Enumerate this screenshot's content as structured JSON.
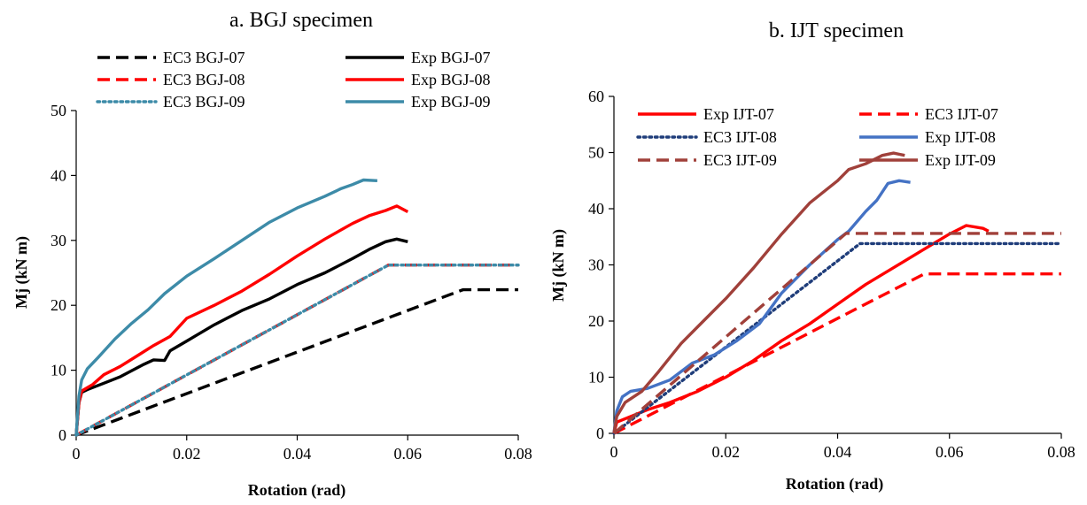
{
  "chart_data": [
    {
      "type": "line",
      "title": "a. BGJ specimen",
      "xlabel": "Rotation (rad)",
      "ylabel": "Mj (kN m)",
      "xlim": [
        0,
        0.08
      ],
      "ylim": [
        0,
        50
      ],
      "xticks": [
        0,
        0.02,
        0.04,
        0.06,
        0.08
      ],
      "xtick_labels": [
        "0",
        "0.02",
        "0.04",
        "0.06",
        "0.08"
      ],
      "yticks": [
        0,
        10,
        20,
        30,
        40,
        50
      ],
      "ytick_labels": [
        "0",
        "10",
        "20",
        "30",
        "40",
        "50"
      ],
      "grid": false,
      "legend_position": "top",
      "series": [
        {
          "name": "EC3 BGJ-07",
          "color": "#000000",
          "dash": "dashed",
          "points": [
            [
              0,
              0
            ],
            [
              0.07,
              22.4
            ],
            [
              0.08,
              22.4
            ]
          ]
        },
        {
          "name": "Exp BGJ-07",
          "color": "#000000",
          "dash": "solid",
          "points": [
            [
              0,
              0
            ],
            [
              0.0005,
              5
            ],
            [
              0.001,
              6.6
            ],
            [
              0.002,
              7.0
            ],
            [
              0.005,
              8.0
            ],
            [
              0.008,
              9.0
            ],
            [
              0.012,
              10.8
            ],
            [
              0.014,
              11.6
            ],
            [
              0.016,
              11.5
            ],
            [
              0.017,
              13.0
            ],
            [
              0.02,
              14.5
            ],
            [
              0.025,
              17.0
            ],
            [
              0.03,
              19.2
            ],
            [
              0.035,
              21.0
            ],
            [
              0.04,
              23.2
            ],
            [
              0.045,
              25.0
            ],
            [
              0.05,
              27.2
            ],
            [
              0.053,
              28.6
            ],
            [
              0.056,
              29.8
            ],
            [
              0.058,
              30.2
            ],
            [
              0.06,
              29.8
            ]
          ]
        },
        {
          "name": "EC3 BGJ-08",
          "color": "#ff0000",
          "dash": "dashed",
          "points": [
            [
              0,
              0
            ],
            [
              0.0565,
              26.2
            ],
            [
              0.08,
              26.2
            ]
          ]
        },
        {
          "name": "Exp BGJ-08",
          "color": "#ff0000",
          "dash": "solid",
          "points": [
            [
              0,
              0
            ],
            [
              0.0005,
              5
            ],
            [
              0.001,
              6.8
            ],
            [
              0.003,
              7.8
            ],
            [
              0.005,
              9.3
            ],
            [
              0.008,
              10.6
            ],
            [
              0.011,
              12.2
            ],
            [
              0.014,
              13.8
            ],
            [
              0.017,
              15.2
            ],
            [
              0.02,
              18.0
            ],
            [
              0.025,
              20.0
            ],
            [
              0.03,
              22.2
            ],
            [
              0.035,
              24.8
            ],
            [
              0.04,
              27.6
            ],
            [
              0.045,
              30.2
            ],
            [
              0.05,
              32.6
            ],
            [
              0.053,
              33.8
            ],
            [
              0.056,
              34.6
            ],
            [
              0.058,
              35.3
            ],
            [
              0.06,
              34.4
            ]
          ]
        },
        {
          "name": "EC3 BGJ-09",
          "color": "#3d8ba8",
          "dash": "dotted",
          "points": [
            [
              0,
              0
            ],
            [
              0.0565,
              26.2
            ],
            [
              0.08,
              26.2
            ]
          ]
        },
        {
          "name": "Exp BGJ-09",
          "color": "#3d8ba8",
          "dash": "solid",
          "points": [
            [
              0,
              0
            ],
            [
              0.0005,
              6
            ],
            [
              0.001,
              8.5
            ],
            [
              0.002,
              10.2
            ],
            [
              0.004,
              12.0
            ],
            [
              0.007,
              14.8
            ],
            [
              0.01,
              17.2
            ],
            [
              0.013,
              19.3
            ],
            [
              0.016,
              21.8
            ],
            [
              0.02,
              24.5
            ],
            [
              0.025,
              27.2
            ],
            [
              0.03,
              30.0
            ],
            [
              0.035,
              32.8
            ],
            [
              0.04,
              35.0
            ],
            [
              0.045,
              36.8
            ],
            [
              0.048,
              38.0
            ],
            [
              0.05,
              38.6
            ],
            [
              0.052,
              39.3
            ],
            [
              0.0545,
              39.2
            ]
          ]
        }
      ]
    },
    {
      "type": "line",
      "title": "b. IJT specimen",
      "xlabel": "Rotation (rad)",
      "ylabel": "Mj (kN m)",
      "xlim": [
        0,
        0.08
      ],
      "ylim": [
        0,
        60
      ],
      "xticks": [
        0,
        0.02,
        0.04,
        0.06,
        0.08
      ],
      "xtick_labels": [
        "0",
        "0.02",
        "0.04",
        "0.06",
        "0.08"
      ],
      "yticks": [
        0,
        10,
        20,
        30,
        40,
        50,
        60
      ],
      "ytick_labels": [
        "0",
        "10",
        "20",
        "30",
        "40",
        "50",
        "60"
      ],
      "grid": false,
      "legend_position": "top",
      "series": [
        {
          "name": "Exp IJT-07",
          "color": "#ff0000",
          "dash": "solid",
          "points": [
            [
              0,
              0
            ],
            [
              0.0005,
              2.0
            ],
            [
              0.003,
              3.0
            ],
            [
              0.006,
              4.2
            ],
            [
              0.01,
              5.5
            ],
            [
              0.015,
              7.5
            ],
            [
              0.02,
              10.0
            ],
            [
              0.025,
              13.0
            ],
            [
              0.03,
              16.5
            ],
            [
              0.035,
              19.5
            ],
            [
              0.04,
              23.0
            ],
            [
              0.045,
              26.5
            ],
            [
              0.05,
              29.5
            ],
            [
              0.055,
              32.5
            ],
            [
              0.06,
              35.5
            ],
            [
              0.063,
              37.0
            ],
            [
              0.066,
              36.5
            ],
            [
              0.067,
              36.0
            ]
          ]
        },
        {
          "name": "EC3 IJT-07",
          "color": "#ff0000",
          "dash": "dashed",
          "points": [
            [
              0,
              0
            ],
            [
              0.0555,
              28.4
            ],
            [
              0.08,
              28.4
            ]
          ]
        },
        {
          "name": "EC3 IJT-08",
          "color": "#1f3d7a",
          "dash": "dotted",
          "points": [
            [
              0,
              0
            ],
            [
              0.044,
              33.8
            ],
            [
              0.08,
              33.8
            ]
          ]
        },
        {
          "name": "Exp IJT-08",
          "color": "#4472c4",
          "dash": "solid",
          "points": [
            [
              0,
              0
            ],
            [
              0.0005,
              4.0
            ],
            [
              0.0015,
              6.5
            ],
            [
              0.003,
              7.5
            ],
            [
              0.006,
              8.0
            ],
            [
              0.01,
              9.5
            ],
            [
              0.014,
              12.5
            ],
            [
              0.018,
              14.0
            ],
            [
              0.022,
              16.5
            ],
            [
              0.026,
              19.5
            ],
            [
              0.03,
              25.0
            ],
            [
              0.035,
              30.0
            ],
            [
              0.04,
              34.5
            ],
            [
              0.042,
              36.0
            ],
            [
              0.045,
              39.5
            ],
            [
              0.047,
              41.5
            ],
            [
              0.049,
              44.5
            ],
            [
              0.051,
              45.0
            ],
            [
              0.053,
              44.7
            ]
          ]
        },
        {
          "name": "EC3 IJT-09",
          "color": "#a0403a",
          "dash": "dashed",
          "points": [
            [
              0,
              0
            ],
            [
              0.0415,
              35.6
            ],
            [
              0.08,
              35.6
            ]
          ]
        },
        {
          "name": "Exp IJT-09",
          "color": "#a0403a",
          "dash": "solid",
          "points": [
            [
              0,
              0
            ],
            [
              0.0005,
              3.0
            ],
            [
              0.002,
              5.5
            ],
            [
              0.005,
              7.5
            ],
            [
              0.008,
              11.0
            ],
            [
              0.012,
              16.0
            ],
            [
              0.016,
              20.0
            ],
            [
              0.02,
              24.0
            ],
            [
              0.025,
              29.5
            ],
            [
              0.03,
              35.5
            ],
            [
              0.035,
              41.0
            ],
            [
              0.04,
              45.0
            ],
            [
              0.042,
              47.0
            ],
            [
              0.045,
              48.0
            ],
            [
              0.048,
              49.5
            ],
            [
              0.05,
              49.9
            ],
            [
              0.052,
              49.5
            ]
          ]
        }
      ]
    }
  ]
}
